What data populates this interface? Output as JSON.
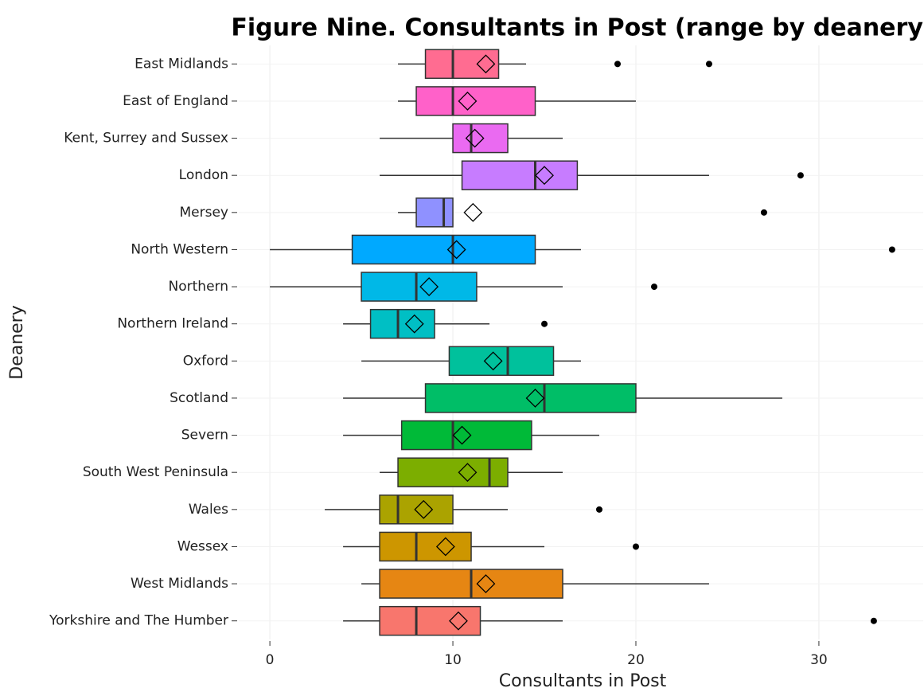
{
  "chart_data": {
    "type": "boxplot",
    "title": "Figure Nine. Consultants in Post (range by deanery)",
    "xlabel": "Consultants in Post",
    "ylabel": "Deanery",
    "xlim": [
      -1.7,
      35.7
    ],
    "xticks": [
      0,
      10,
      20,
      30
    ],
    "grid": true,
    "boxes": [
      {
        "category": "East Midlands",
        "color": "#FF6C91",
        "whisker_low": 7,
        "q1": 8.5,
        "median": 10,
        "q3": 12.5,
        "whisker_high": 14,
        "mean": 11.8,
        "outliers": [
          19,
          24
        ]
      },
      {
        "category": "East of England",
        "color": "#FF61C9",
        "whisker_low": 7,
        "q1": 8,
        "median": 10,
        "q3": 14.5,
        "whisker_high": 20,
        "mean": 10.8,
        "outliers": []
      },
      {
        "category": "Kent, Surrey and Sussex",
        "color": "#EA6AF1",
        "whisker_low": 6,
        "q1": 10,
        "median": 11,
        "q3": 13,
        "whisker_high": 16,
        "mean": 11.2,
        "outliers": []
      },
      {
        "category": "London",
        "color": "#C77CFF",
        "whisker_low": 6,
        "q1": 10.5,
        "median": 14.5,
        "q3": 16.8,
        "whisker_high": 24,
        "mean": 15,
        "outliers": [
          29
        ]
      },
      {
        "category": "Mersey",
        "color": "#8F91FF",
        "whisker_low": 7,
        "q1": 8,
        "median": 9.5,
        "q3": 10,
        "whisker_high": 10,
        "mean": 11.1,
        "outliers": [
          27
        ]
      },
      {
        "category": "North Western",
        "color": "#00A9FF",
        "whisker_low": 0,
        "q1": 4.5,
        "median": 10,
        "q3": 14.5,
        "whisker_high": 17,
        "mean": 10.2,
        "outliers": [
          34
        ]
      },
      {
        "category": "Northern",
        "color": "#00B8E7",
        "whisker_low": 0,
        "q1": 5,
        "median": 8,
        "q3": 11.3,
        "whisker_high": 16,
        "mean": 8.7,
        "outliers": [
          21
        ]
      },
      {
        "category": "Northern Ireland",
        "color": "#00BFC4",
        "whisker_low": 4,
        "q1": 5.5,
        "median": 7,
        "q3": 9,
        "whisker_high": 12,
        "mean": 7.9,
        "outliers": [
          15
        ]
      },
      {
        "category": "Oxford",
        "color": "#00C19C",
        "whisker_low": 5,
        "q1": 9.8,
        "median": 13,
        "q3": 15.5,
        "whisker_high": 17,
        "mean": 12.2,
        "outliers": []
      },
      {
        "category": "Scotland",
        "color": "#00BE67",
        "whisker_low": 4,
        "q1": 8.5,
        "median": 15,
        "q3": 20,
        "whisker_high": 28,
        "mean": 14.5,
        "outliers": []
      },
      {
        "category": "Severn",
        "color": "#00BA38",
        "whisker_low": 4,
        "q1": 7.2,
        "median": 10,
        "q3": 14.3,
        "whisker_high": 18,
        "mean": 10.5,
        "outliers": []
      },
      {
        "category": "South West Peninsula",
        "color": "#7CAE00",
        "whisker_low": 6,
        "q1": 7,
        "median": 12,
        "q3": 13,
        "whisker_high": 16,
        "mean": 10.8,
        "outliers": []
      },
      {
        "category": "Wales",
        "color": "#ABA300",
        "whisker_low": 3,
        "q1": 6,
        "median": 7,
        "q3": 10,
        "whisker_high": 13,
        "mean": 8.4,
        "outliers": [
          18
        ]
      },
      {
        "category": "Wessex",
        "color": "#CD9600",
        "whisker_low": 4,
        "q1": 6,
        "median": 8,
        "q3": 11,
        "whisker_high": 15,
        "mean": 9.6,
        "outliers": [
          20
        ]
      },
      {
        "category": "West Midlands",
        "color": "#E68613",
        "whisker_low": 5,
        "q1": 6,
        "median": 11,
        "q3": 16,
        "whisker_high": 24,
        "mean": 11.8,
        "outliers": []
      },
      {
        "category": "Yorkshire and The Humber",
        "color": "#F8766D",
        "whisker_low": 4,
        "q1": 6,
        "median": 8,
        "q3": 11.5,
        "whisker_high": 16,
        "mean": 10.3,
        "outliers": [
          33
        ]
      }
    ]
  }
}
